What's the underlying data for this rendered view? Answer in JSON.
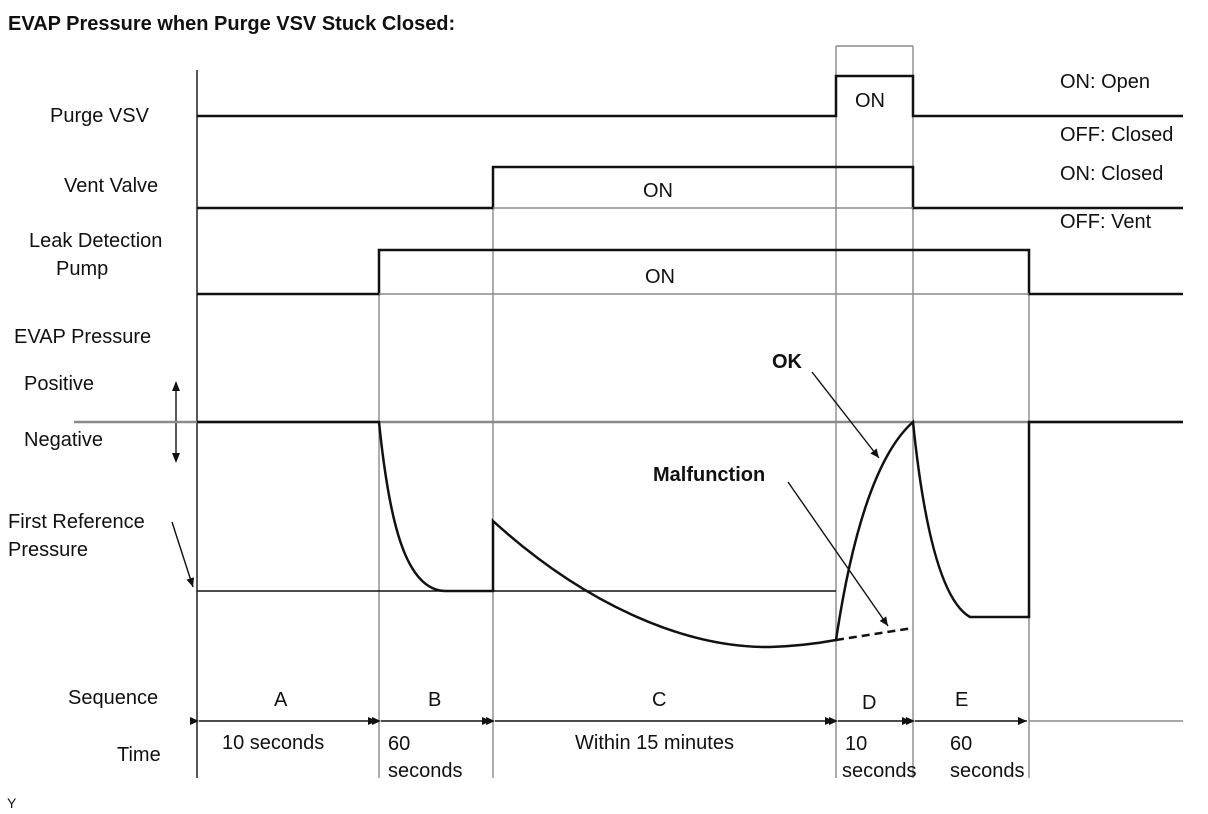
{
  "title": "EVAP Pressure when Purge VSV Stuck Closed:",
  "signals": {
    "purge_vsv": {
      "label": "Purge VSV",
      "on_text": "ON",
      "state_on": "ON: Open",
      "state_off": "OFF: Closed"
    },
    "vent_valve": {
      "label": "Vent Valve",
      "on_text": "ON",
      "state_on": "ON: Closed",
      "state_off": "OFF: Vent"
    },
    "leak_pump": {
      "label_line1": "Leak Detection",
      "label_line2": "Pump",
      "on_text": "ON"
    }
  },
  "evap": {
    "label": "EVAP Pressure",
    "positive": "Positive",
    "negative": "Negative",
    "first_ref_line1": "First Reference",
    "first_ref_line2": "Pressure",
    "ok_label": "OK",
    "malfunction_label": "Malfunction"
  },
  "sequence": {
    "label": "Sequence",
    "time_label": "Time",
    "phases": [
      {
        "id": "A",
        "time1": "10 seconds",
        "time2": ""
      },
      {
        "id": "B",
        "time1": "60",
        "time2": "seconds"
      },
      {
        "id": "C",
        "time1": "Within 15 minutes",
        "time2": ""
      },
      {
        "id": "D",
        "time1": "10",
        "time2": "seconds"
      },
      {
        "id": "E",
        "time1": "60",
        "time2": "seconds"
      }
    ]
  },
  "footnote": "Y"
}
